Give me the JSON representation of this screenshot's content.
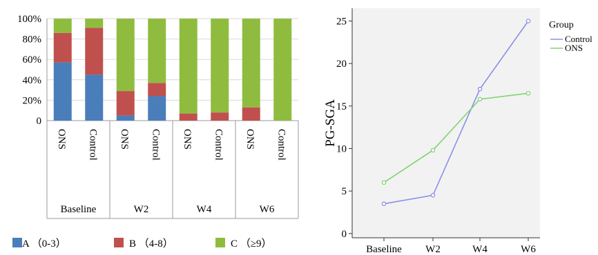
{
  "chart_data": [
    {
      "type": "bar",
      "stacked": true,
      "percent": true,
      "ylim": [
        0,
        100
      ],
      "yticks": [
        "0",
        "20%",
        "40%",
        "60%",
        "80%",
        "100%"
      ],
      "groups": [
        {
          "label": "Baseline",
          "bars": [
            {
              "label": "ONS",
              "values": [
                57,
                29,
                14
              ]
            },
            {
              "label": "Control",
              "values": [
                45,
                46,
                9
              ]
            }
          ]
        },
        {
          "label": "W2",
          "bars": [
            {
              "label": "ONS",
              "values": [
                5,
                24,
                71
              ]
            },
            {
              "label": "Control",
              "values": [
                24,
                13,
                63
              ]
            }
          ]
        },
        {
          "label": "W4",
          "bars": [
            {
              "label": "ONS",
              "values": [
                0,
                7,
                93
              ]
            },
            {
              "label": "Control",
              "values": [
                0,
                8,
                92
              ]
            }
          ]
        },
        {
          "label": "W6",
          "bars": [
            {
              "label": "ONS",
              "values": [
                0,
                13,
                87
              ]
            },
            {
              "label": "Control",
              "values": [
                0,
                0,
                100
              ]
            }
          ]
        }
      ],
      "series": [
        {
          "name": "A （0-3）",
          "color": "#4a7ebb"
        },
        {
          "name": "B （4-8）",
          "color": "#c0504d"
        },
        {
          "name": "C （≥9）",
          "color": "#8fbc3f"
        }
      ]
    },
    {
      "type": "line",
      "x": [
        "Baseline",
        "W2",
        "W4",
        "W6"
      ],
      "ylabel": "PG-SGA",
      "ylim": [
        -0.5,
        26.5
      ],
      "yticks": [
        0,
        5,
        10,
        15,
        20,
        25
      ],
      "legend_title": "Group",
      "legend_position": "top-right",
      "series": [
        {
          "name": "Control",
          "color": "#8c8fe8",
          "values": [
            3.5,
            4.5,
            17.0,
            25.0
          ]
        },
        {
          "name": "ONS",
          "color": "#7ed46f",
          "values": [
            6.0,
            9.8,
            15.8,
            16.5
          ]
        }
      ]
    }
  ]
}
